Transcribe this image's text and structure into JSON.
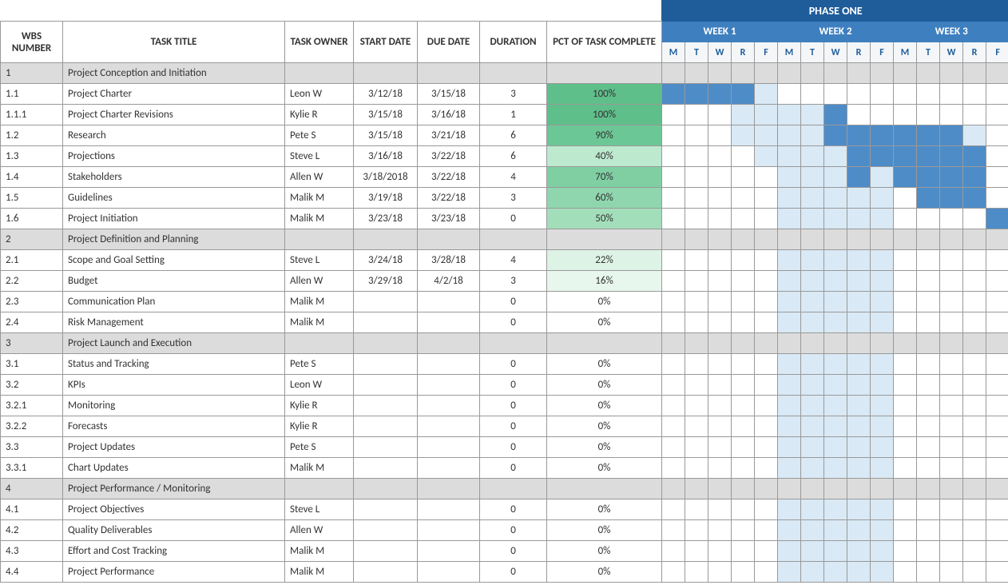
{
  "columns": {
    "wbs": "WBS NUMBER",
    "title": "TASK TITLE",
    "owner": "TASK OWNER",
    "start": "START DATE",
    "due": "DUE DATE",
    "duration": "DURATION",
    "pct": "PCT OF TASK COMPLETE"
  },
  "phase": {
    "label": "PHASE ONE"
  },
  "weeks": [
    {
      "label": "WEEK 1",
      "days": [
        "M",
        "T",
        "W",
        "R",
        "F"
      ]
    },
    {
      "label": "WEEK 2",
      "days": [
        "M",
        "T",
        "W",
        "R",
        "F"
      ]
    },
    {
      "label": "WEEK 3",
      "days": [
        "M",
        "T",
        "W",
        "R",
        "F"
      ]
    }
  ],
  "pct_colors": {
    "100": "#5fbf8a",
    "90": "#6cc796",
    "70": "#7fcfa3",
    "60": "#8fd6af",
    "50": "#a3deba",
    "40": "#bde9cf",
    "22": "#ddf3e6",
    "16": "#e8f7ee",
    "0": "#ffffff"
  },
  "style": {
    "section_bg": "#dcdcdc",
    "range_bg": "#d9e9f5",
    "filled_bg": "#4e8cc8",
    "phase_bg": "#1f5d9a",
    "week_bg": "#3e7fbf",
    "dayhdr_bg": "#f4f6f8",
    "border": "#999999"
  },
  "rows": [
    {
      "section": true,
      "wbs": "1",
      "title": "Project Conception and Initiation",
      "owner": "",
      "start": "",
      "due": "",
      "duration": "",
      "pct": "",
      "gantt": []
    },
    {
      "section": false,
      "wbs": "1.1",
      "title": "Project Charter",
      "owner": "Leon W",
      "start": "3/12/18",
      "due": "3/15/18",
      "duration": "3",
      "pct": "100%",
      "gantt": [
        "f",
        "f",
        "f",
        "f",
        "r",
        "",
        "",
        "",
        "",
        "",
        " ",
        " ",
        " ",
        " ",
        " "
      ]
    },
    {
      "section": false,
      "wbs": "1.1.1",
      "title": "Project Charter Revisions",
      "owner": "Kylie R",
      "start": "3/15/18",
      "due": "3/16/18",
      "duration": "1",
      "pct": "100%",
      "gantt": [
        "",
        "",
        "",
        "r",
        "r",
        "r",
        "r",
        "f",
        "",
        "",
        "",
        "",
        "",
        "",
        ""
      ]
    },
    {
      "section": false,
      "wbs": "1.2",
      "title": "Research",
      "owner": "Pete S",
      "start": "3/15/18",
      "due": "3/21/18",
      "duration": "6",
      "pct": "90%",
      "gantt": [
        "",
        "",
        "",
        "r",
        "r",
        "r",
        "r",
        "f",
        "f",
        "f",
        "f",
        "f",
        "f",
        "r",
        ""
      ]
    },
    {
      "section": false,
      "wbs": "1.3",
      "title": "Projections",
      "owner": "Steve L",
      "start": "3/16/18",
      "due": "3/22/18",
      "duration": "6",
      "pct": "40%",
      "gantt": [
        "",
        "",
        "",
        "",
        "r",
        "r",
        "r",
        "r",
        "f",
        "f",
        "f",
        "f",
        "f",
        "f",
        ""
      ]
    },
    {
      "section": false,
      "wbs": "1.4",
      "title": "Stakeholders",
      "owner": "Allen W",
      "start": "3/18/2018",
      "due": "3/22/18",
      "duration": "4",
      "pct": "70%",
      "gantt": [
        "",
        "",
        "",
        "",
        "",
        "r",
        "r",
        "r",
        "f",
        "r",
        "f",
        "f",
        "f",
        "f",
        ""
      ]
    },
    {
      "section": false,
      "wbs": "1.5",
      "title": "Guidelines",
      "owner": "Malik M",
      "start": "3/19/18",
      "due": "3/22/18",
      "duration": "3",
      "pct": "60%",
      "gantt": [
        "",
        "",
        "",
        "",
        "",
        "r",
        "r",
        "r",
        "r",
        "r",
        "",
        "f",
        "f",
        "f",
        ""
      ]
    },
    {
      "section": false,
      "wbs": "1.6",
      "title": "Project Initiation",
      "owner": "Malik M",
      "start": "3/23/18",
      "due": "3/23/18",
      "duration": "0",
      "pct": "50%",
      "gantt": [
        "",
        "",
        "",
        "",
        "",
        "r",
        "r",
        "r",
        "r",
        "r",
        "",
        "",
        "",
        "",
        "f"
      ]
    },
    {
      "section": true,
      "wbs": "2",
      "title": "Project Definition and Planning",
      "owner": "",
      "start": "",
      "due": "",
      "duration": "",
      "pct": "",
      "gantt": []
    },
    {
      "section": false,
      "wbs": "2.1",
      "title": "Scope and Goal Setting",
      "owner": "Steve L",
      "start": "3/24/18",
      "due": "3/28/18",
      "duration": "4",
      "pct": "22%",
      "gantt": [
        "",
        "",
        "",
        "",
        "",
        "r",
        "r",
        "r",
        "r",
        "r",
        "",
        "",
        "",
        "",
        ""
      ]
    },
    {
      "section": false,
      "wbs": "2.2",
      "title": "Budget",
      "owner": "Allen W",
      "start": "3/29/18",
      "due": "4/2/18",
      "duration": "3",
      "pct": "16%",
      "gantt": [
        "",
        "",
        "",
        "",
        "",
        "r",
        "r",
        "r",
        "r",
        "r",
        "",
        "",
        "",
        "",
        ""
      ]
    },
    {
      "section": false,
      "wbs": "2.3",
      "title": "Communication Plan",
      "owner": "Malik M",
      "start": "",
      "due": "",
      "duration": "0",
      "pct": "0%",
      "gantt": [
        "",
        "",
        "",
        "",
        "",
        "r",
        "r",
        "r",
        "r",
        "r",
        "",
        "",
        "",
        "",
        ""
      ]
    },
    {
      "section": false,
      "wbs": "2.4",
      "title": "Risk Management",
      "owner": "Malik M",
      "start": "",
      "due": "",
      "duration": "0",
      "pct": "0%",
      "gantt": [
        "",
        "",
        "",
        "",
        "",
        "r",
        "r",
        "r",
        "r",
        "r",
        "",
        "",
        "",
        "",
        ""
      ]
    },
    {
      "section": true,
      "wbs": "3",
      "title": "Project Launch and Execution",
      "owner": "",
      "start": "",
      "due": "",
      "duration": "",
      "pct": "",
      "gantt": []
    },
    {
      "section": false,
      "wbs": "3.1",
      "title": "Status and Tracking",
      "owner": "Pete S",
      "start": "",
      "due": "",
      "duration": "0",
      "pct": "0%",
      "gantt": [
        "",
        "",
        "",
        "",
        "",
        "r",
        "r",
        "r",
        "r",
        "r",
        "",
        "",
        "",
        "",
        ""
      ]
    },
    {
      "section": false,
      "wbs": "3.2",
      "title": "KPIs",
      "owner": "Leon W",
      "start": "",
      "due": "",
      "duration": "0",
      "pct": "0%",
      "gantt": [
        "",
        "",
        "",
        "",
        "",
        "r",
        "r",
        "r",
        "r",
        "r",
        "",
        "",
        "",
        "",
        ""
      ]
    },
    {
      "section": false,
      "wbs": "3.2.1",
      "title": "Monitoring",
      "owner": "Kylie R",
      "start": "",
      "due": "",
      "duration": "0",
      "pct": "0%",
      "gantt": [
        "",
        "",
        "",
        "",
        "",
        "r",
        "r",
        "r",
        "r",
        "r",
        "",
        "",
        "",
        "",
        ""
      ]
    },
    {
      "section": false,
      "wbs": "3.2.2",
      "title": "Forecasts",
      "owner": "Kylie R",
      "start": "",
      "due": "",
      "duration": "0",
      "pct": "0%",
      "gantt": [
        "",
        "",
        "",
        "",
        "",
        "r",
        "r",
        "r",
        "r",
        "r",
        "",
        "",
        "",
        "",
        ""
      ]
    },
    {
      "section": false,
      "wbs": "3.3",
      "title": "Project Updates",
      "owner": "Pete S",
      "start": "",
      "due": "",
      "duration": "0",
      "pct": "0%",
      "gantt": [
        "",
        "",
        "",
        "",
        "",
        "r",
        "r",
        "r",
        "r",
        "r",
        "",
        "",
        "",
        "",
        ""
      ]
    },
    {
      "section": false,
      "wbs": "3.3.1",
      "title": "Chart Updates",
      "owner": "Malik M",
      "start": "",
      "due": "",
      "duration": "0",
      "pct": "0%",
      "gantt": [
        "",
        "",
        "",
        "",
        "",
        "r",
        "r",
        "r",
        "r",
        "r",
        "",
        "",
        "",
        "",
        ""
      ]
    },
    {
      "section": true,
      "wbs": "4",
      "title": "Project Performance / Monitoring",
      "owner": "",
      "start": "",
      "due": "",
      "duration": "",
      "pct": "",
      "gantt": []
    },
    {
      "section": false,
      "wbs": "4.1",
      "title": "Project Objectives",
      "owner": "Steve L",
      "start": "",
      "due": "",
      "duration": "0",
      "pct": "0%",
      "gantt": [
        "",
        "",
        "",
        "",
        "",
        "r",
        "r",
        "r",
        "r",
        "r",
        "",
        "",
        "",
        "",
        ""
      ]
    },
    {
      "section": false,
      "wbs": "4.2",
      "title": "Quality Deliverables",
      "owner": "Allen W",
      "start": "",
      "due": "",
      "duration": "0",
      "pct": "0%",
      "gantt": [
        "",
        "",
        "",
        "",
        "",
        "r",
        "r",
        "r",
        "r",
        "r",
        "",
        "",
        "",
        "",
        ""
      ]
    },
    {
      "section": false,
      "wbs": "4.3",
      "title": "Effort and Cost Tracking",
      "owner": "Malik M",
      "start": "",
      "due": "",
      "duration": "0",
      "pct": "0%",
      "gantt": [
        "",
        "",
        "",
        "",
        "",
        "r",
        "r",
        "r",
        "r",
        "r",
        "",
        "",
        "",
        "",
        ""
      ]
    },
    {
      "section": false,
      "wbs": "4.4",
      "title": "Project Performance",
      "owner": "Malik M",
      "start": "",
      "due": "",
      "duration": "0",
      "pct": "0%",
      "gantt": [
        "",
        "",
        "",
        "",
        "",
        "r",
        "r",
        "r",
        "r",
        "r",
        "",
        "",
        "",
        "",
        ""
      ]
    }
  ]
}
